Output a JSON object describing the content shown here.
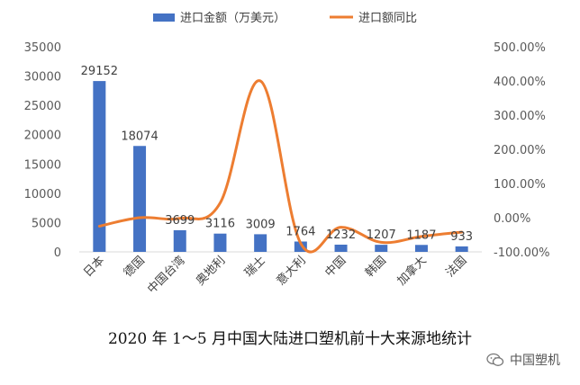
{
  "chart_data": {
    "type": "bar",
    "categories": [
      "日本",
      "德国",
      "中国台湾",
      "奥地利",
      "瑞士",
      "意大利",
      "中国",
      "韩国",
      "加拿大",
      "法国"
    ],
    "series": [
      {
        "name": "进口金额（万美元）",
        "type": "bar",
        "axis": "left",
        "color": "#4472C4",
        "values": [
          29152,
          18074,
          3699,
          3116,
          3009,
          1764,
          1232,
          1207,
          1187,
          933
        ],
        "data_labels": [
          "29152",
          "18074",
          "3699",
          "3116",
          "3009",
          "1764",
          "1232",
          "1207",
          "1187",
          "933"
        ]
      },
      {
        "name": "进口额同比",
        "type": "line",
        "axis": "right",
        "color": "#ED7D31",
        "values": [
          -25,
          0,
          -2,
          43,
          400,
          -75,
          -28,
          -72,
          -55,
          -42
        ]
      }
    ],
    "left_axis": {
      "min": 0,
      "max": 35000,
      "step": 5000,
      "tick_labels": [
        "0",
        "5000",
        "10000",
        "15000",
        "20000",
        "25000",
        "30000",
        "35000"
      ]
    },
    "right_axis": {
      "min": -100,
      "max": 500,
      "step": 100,
      "tick_labels": [
        "-100.00%",
        "0.00%",
        "100.00%",
        "200.00%",
        "300.00%",
        "400.00%",
        "500.00%"
      ]
    },
    "legend_position": "top",
    "grid": false
  },
  "caption": "2020 年 1～5 月中国大陆进口塑机前十大来源地统计",
  "watermark": {
    "text": "中国塑机",
    "icon": "wechat-icon"
  }
}
